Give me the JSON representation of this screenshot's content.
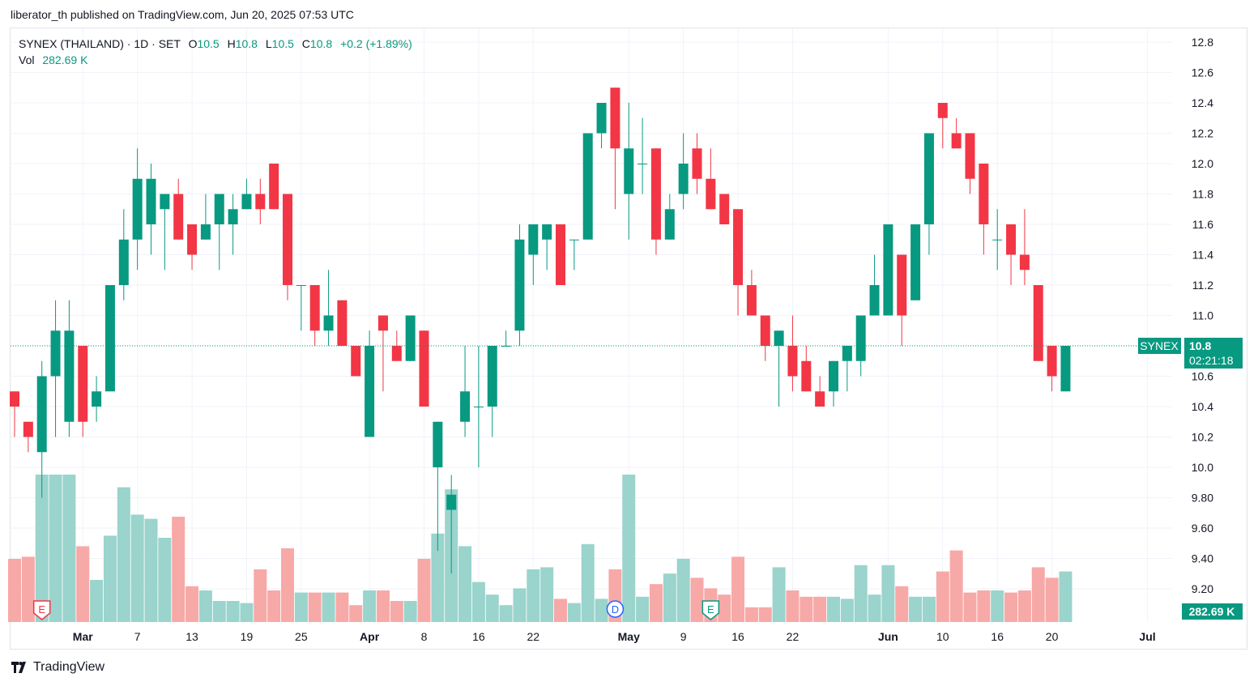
{
  "header": {
    "published_line": "liberator_th published on TradingView.com, Jun 20, 2025 07:53 UTC"
  },
  "legend": {
    "symbol": "SYNEX (THAILAND) · 1D · SET",
    "open_label": "O",
    "open": "10.5",
    "high_label": "H",
    "high": "10.8",
    "low_label": "L",
    "low": "10.5",
    "close_label": "C",
    "close": "10.8",
    "change": "+0.2 (+1.89%)",
    "vol_label": "Vol",
    "vol": "282.69 K"
  },
  "price_tag": {
    "symbol": "SYNEX",
    "price": "10.8",
    "countdown": "02:21:18"
  },
  "volume_tag": "282.69 K",
  "footer": {
    "brand": "TradingView"
  },
  "colors": {
    "up": "#089981",
    "down": "#f23645",
    "up_vol": "#9ad4cc",
    "down_vol": "#f7a9a7",
    "grid": "#f0f3fa"
  },
  "chart_data": {
    "type": "candlestick",
    "y_ticks": [
      "12.8",
      "12.6",
      "12.4",
      "12.2",
      "12.0",
      "11.8",
      "11.6",
      "11.4",
      "11.2",
      "11.0",
      "10.8",
      "10.6",
      "10.4",
      "10.2",
      "10.0",
      "9.80",
      "9.60",
      "9.40",
      "9.20"
    ],
    "x_ticks": [
      {
        "label": "Mar",
        "bar": 5
      },
      {
        "label": "7",
        "bar": 9
      },
      {
        "label": "13",
        "bar": 13
      },
      {
        "label": "19",
        "bar": 17
      },
      {
        "label": "25",
        "bar": 21
      },
      {
        "label": "Apr",
        "bar": 26
      },
      {
        "label": "8",
        "bar": 30
      },
      {
        "label": "16",
        "bar": 34
      },
      {
        "label": "22",
        "bar": 38
      },
      {
        "label": "May",
        "bar": 45
      },
      {
        "label": "9",
        "bar": 49
      },
      {
        "label": "16",
        "bar": 53
      },
      {
        "label": "22",
        "bar": 57
      },
      {
        "label": "Jun",
        "bar": 64
      },
      {
        "label": "10",
        "bar": 68
      },
      {
        "label": "16",
        "bar": 72
      },
      {
        "label": "20",
        "bar": 76
      },
      {
        "label": "Jul",
        "bar": 83
      }
    ],
    "last_price": 10.8,
    "events": [
      {
        "type": "E",
        "bar": 2,
        "kind": "earnings"
      },
      {
        "type": "D",
        "bar": 44,
        "kind": "dividend"
      },
      {
        "type": "E",
        "bar": 51,
        "kind": "earnings"
      }
    ],
    "candles": [
      {
        "o": 10.5,
        "h": 10.5,
        "l": 10.2,
        "c": 10.4,
        "v": 30
      },
      {
        "o": 10.3,
        "h": 10.3,
        "l": 10.1,
        "c": 10.2,
        "v": 31
      },
      {
        "o": 10.1,
        "h": 10.7,
        "l": 9.8,
        "c": 10.6,
        "v": 70
      },
      {
        "o": 10.6,
        "h": 11.1,
        "l": 10.2,
        "c": 10.9,
        "v": 70
      },
      {
        "o": 10.3,
        "h": 11.1,
        "l": 10.2,
        "c": 10.9,
        "v": 70
      },
      {
        "o": 10.8,
        "h": 10.8,
        "l": 10.2,
        "c": 10.3,
        "v": 36
      },
      {
        "o": 10.4,
        "h": 10.6,
        "l": 10.3,
        "c": 10.5,
        "v": 20
      },
      {
        "o": 10.5,
        "h": 11.2,
        "l": 10.5,
        "c": 11.2,
        "v": 41
      },
      {
        "o": 11.2,
        "h": 11.7,
        "l": 11.1,
        "c": 11.5,
        "v": 64
      },
      {
        "o": 11.5,
        "h": 12.1,
        "l": 11.3,
        "c": 11.9,
        "v": 51
      },
      {
        "o": 11.6,
        "h": 12.0,
        "l": 11.4,
        "c": 11.9,
        "v": 49
      },
      {
        "o": 11.7,
        "h": 11.8,
        "l": 11.3,
        "c": 11.8,
        "v": 40
      },
      {
        "o": 11.8,
        "h": 11.9,
        "l": 11.5,
        "c": 11.5,
        "v": 50
      },
      {
        "o": 11.6,
        "h": 11.6,
        "l": 11.3,
        "c": 11.4,
        "v": 17
      },
      {
        "o": 11.5,
        "h": 11.8,
        "l": 11.5,
        "c": 11.6,
        "v": 15
      },
      {
        "o": 11.6,
        "h": 11.8,
        "l": 11.3,
        "c": 11.8,
        "v": 10
      },
      {
        "o": 11.6,
        "h": 11.8,
        "l": 11.4,
        "c": 11.7,
        "v": 10
      },
      {
        "o": 11.7,
        "h": 11.9,
        "l": 11.7,
        "c": 11.8,
        "v": 9
      },
      {
        "o": 11.8,
        "h": 11.9,
        "l": 11.6,
        "c": 11.7,
        "v": 25
      },
      {
        "o": 12.0,
        "h": 12.0,
        "l": 11.7,
        "c": 11.7,
        "v": 15
      },
      {
        "o": 11.8,
        "h": 11.8,
        "l": 11.1,
        "c": 11.2,
        "v": 35
      },
      {
        "o": 11.2,
        "h": 11.2,
        "l": 10.9,
        "c": 11.2,
        "v": 14
      },
      {
        "o": 11.2,
        "h": 11.2,
        "l": 10.8,
        "c": 10.9,
        "v": 14
      },
      {
        "o": 10.9,
        "h": 11.3,
        "l": 10.8,
        "c": 11.0,
        "v": 14
      },
      {
        "o": 11.1,
        "h": 11.1,
        "l": 10.8,
        "c": 10.8,
        "v": 14
      },
      {
        "o": 10.8,
        "h": 10.8,
        "l": 10.6,
        "c": 10.6,
        "v": 8
      },
      {
        "o": 10.2,
        "h": 10.9,
        "l": 10.2,
        "c": 10.8,
        "v": 15
      },
      {
        "o": 11.0,
        "h": 11.0,
        "l": 10.5,
        "c": 10.9,
        "v": 15
      },
      {
        "o": 10.8,
        "h": 10.9,
        "l": 10.7,
        "c": 10.7,
        "v": 10
      },
      {
        "o": 10.7,
        "h": 11.0,
        "l": 10.7,
        "c": 11.0,
        "v": 10
      },
      {
        "o": 10.9,
        "h": 10.9,
        "l": 10.4,
        "c": 10.4,
        "v": 30
      },
      {
        "o": 10.0,
        "h": 10.3,
        "l": 9.45,
        "c": 10.3,
        "v": 42
      },
      {
        "o": 9.72,
        "h": 9.95,
        "l": 9.3,
        "c": 9.82,
        "v": 63
      },
      {
        "o": 10.3,
        "h": 10.8,
        "l": 10.2,
        "c": 10.5,
        "v": 36
      },
      {
        "o": 10.4,
        "h": 10.8,
        "l": 10.0,
        "c": 10.4,
        "v": 19
      },
      {
        "o": 10.4,
        "h": 10.8,
        "l": 10.2,
        "c": 10.8,
        "v": 13
      },
      {
        "o": 10.8,
        "h": 10.9,
        "l": 10.8,
        "c": 10.8,
        "v": 8
      },
      {
        "o": 10.9,
        "h": 11.6,
        "l": 10.8,
        "c": 11.5,
        "v": 16
      },
      {
        "o": 11.4,
        "h": 11.6,
        "l": 11.2,
        "c": 11.6,
        "v": 25
      },
      {
        "o": 11.5,
        "h": 11.6,
        "l": 11.3,
        "c": 11.6,
        "v": 26
      },
      {
        "o": 11.6,
        "h": 11.6,
        "l": 11.2,
        "c": 11.2,
        "v": 11
      },
      {
        "o": 11.5,
        "h": 11.5,
        "l": 11.3,
        "c": 11.5,
        "v": 9
      },
      {
        "o": 11.5,
        "h": 12.2,
        "l": 11.5,
        "c": 12.2,
        "v": 37
      },
      {
        "o": 12.2,
        "h": 12.4,
        "l": 12.1,
        "c": 12.4,
        "v": 11
      },
      {
        "o": 12.5,
        "h": 12.5,
        "l": 11.7,
        "c": 12.1,
        "v": 25
      },
      {
        "o": 11.8,
        "h": 12.4,
        "l": 11.5,
        "c": 12.1,
        "v": 70
      },
      {
        "o": 12.0,
        "h": 12.3,
        "l": 11.8,
        "c": 12.0,
        "v": 12
      },
      {
        "o": 12.1,
        "h": 12.1,
        "l": 11.4,
        "c": 11.5,
        "v": 18
      },
      {
        "o": 11.5,
        "h": 11.8,
        "l": 11.5,
        "c": 11.7,
        "v": 23
      },
      {
        "o": 11.8,
        "h": 12.2,
        "l": 11.7,
        "c": 12.0,
        "v": 30
      },
      {
        "o": 12.1,
        "h": 12.2,
        "l": 11.8,
        "c": 11.9,
        "v": 21
      },
      {
        "o": 11.9,
        "h": 12.1,
        "l": 11.7,
        "c": 11.7,
        "v": 16
      },
      {
        "o": 11.8,
        "h": 11.8,
        "l": 11.6,
        "c": 11.6,
        "v": 13
      },
      {
        "o": 11.7,
        "h": 11.7,
        "l": 11.0,
        "c": 11.2,
        "v": 31
      },
      {
        "o": 11.2,
        "h": 11.3,
        "l": 11.0,
        "c": 11.0,
        "v": 7
      },
      {
        "o": 11.0,
        "h": 11.0,
        "l": 10.7,
        "c": 10.8,
        "v": 7
      },
      {
        "o": 10.8,
        "h": 10.9,
        "l": 10.4,
        "c": 10.9,
        "v": 26
      },
      {
        "o": 10.8,
        "h": 11.0,
        "l": 10.5,
        "c": 10.6,
        "v": 15
      },
      {
        "o": 10.7,
        "h": 10.8,
        "l": 10.5,
        "c": 10.5,
        "v": 12
      },
      {
        "o": 10.5,
        "h": 10.6,
        "l": 10.4,
        "c": 10.4,
        "v": 12
      },
      {
        "o": 10.5,
        "h": 10.7,
        "l": 10.4,
        "c": 10.7,
        "v": 12
      },
      {
        "o": 10.7,
        "h": 10.8,
        "l": 10.5,
        "c": 10.8,
        "v": 11
      },
      {
        "o": 10.7,
        "h": 11.0,
        "l": 10.6,
        "c": 11.0,
        "v": 27
      },
      {
        "o": 11.0,
        "h": 11.4,
        "l": 11.0,
        "c": 11.2,
        "v": 13
      },
      {
        "o": 11.0,
        "h": 11.6,
        "l": 11.0,
        "c": 11.6,
        "v": 27
      },
      {
        "o": 11.4,
        "h": 11.4,
        "l": 10.8,
        "c": 11.0,
        "v": 17
      },
      {
        "o": 11.1,
        "h": 11.6,
        "l": 11.1,
        "c": 11.6,
        "v": 12
      },
      {
        "o": 11.6,
        "h": 12.2,
        "l": 11.4,
        "c": 12.2,
        "v": 12
      },
      {
        "o": 12.4,
        "h": 12.4,
        "l": 12.1,
        "c": 12.3,
        "v": 24
      },
      {
        "o": 12.2,
        "h": 12.3,
        "l": 12.1,
        "c": 12.1,
        "v": 34
      },
      {
        "o": 12.2,
        "h": 12.2,
        "l": 11.8,
        "c": 11.9,
        "v": 14
      },
      {
        "o": 12.0,
        "h": 12.0,
        "l": 11.4,
        "c": 11.6,
        "v": 15
      },
      {
        "o": 11.5,
        "h": 11.7,
        "l": 11.3,
        "c": 11.5,
        "v": 15
      },
      {
        "o": 11.6,
        "h": 11.6,
        "l": 11.2,
        "c": 11.4,
        "v": 14
      },
      {
        "o": 11.4,
        "h": 11.7,
        "l": 11.2,
        "c": 11.3,
        "v": 15
      },
      {
        "o": 11.2,
        "h": 11.2,
        "l": 10.7,
        "c": 10.7,
        "v": 26
      },
      {
        "o": 10.8,
        "h": 10.8,
        "l": 10.5,
        "c": 10.6,
        "v": 21
      },
      {
        "o": 10.5,
        "h": 10.8,
        "l": 10.5,
        "c": 10.8,
        "v": 24
      }
    ]
  }
}
